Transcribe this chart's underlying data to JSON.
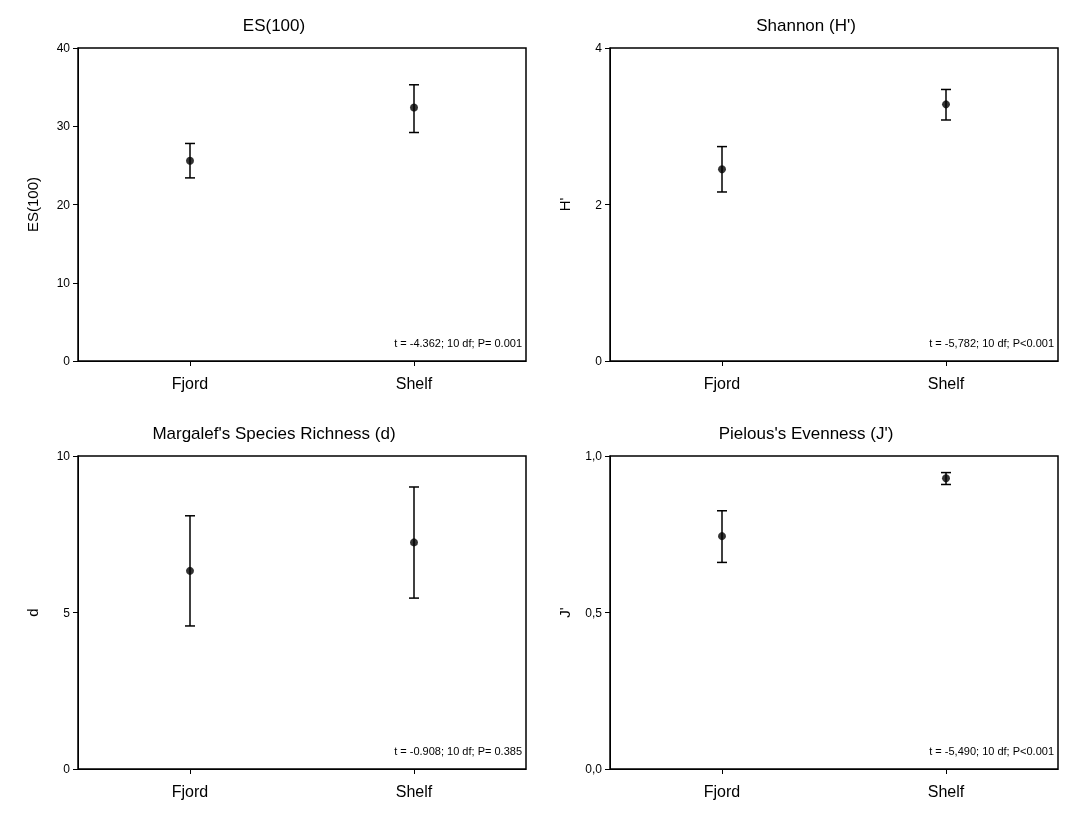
{
  "chart_data": [
    {
      "type": "scatter",
      "title": "ES(100)",
      "ylabel": "ES(100)",
      "categories": [
        "Fjord",
        "Shelf"
      ],
      "values": [
        25.6,
        32.4
      ],
      "errors": [
        [
          23.4,
          27.8
        ],
        [
          29.2,
          35.3
        ]
      ],
      "color": "#000000",
      "marker": "circle",
      "ylim": [
        0,
        40
      ],
      "yticks": [
        0,
        10,
        20,
        30,
        40
      ],
      "annotations": [
        "t = -4.362; 10 df; P= 0.001"
      ]
    },
    {
      "type": "scatter",
      "title": "Shannon (H')",
      "ylabel": "H'",
      "categories": [
        "Fjord",
        "Shelf"
      ],
      "values": [
        2.45,
        3.28
      ],
      "errors": [
        [
          2.16,
          2.74
        ],
        [
          3.08,
          3.47
        ]
      ],
      "color": "#000000",
      "marker": "circle",
      "ylim": [
        0,
        4
      ],
      "yticks": [
        0,
        2,
        4
      ],
      "annotations": [
        "t = -5,782; 10 df; P<0.001"
      ]
    },
    {
      "type": "scatter",
      "title": "Margalef's Species Richness (d)",
      "ylabel": "d",
      "categories": [
        "Fjord",
        "Shelf"
      ],
      "values": [
        6.33,
        7.24
      ],
      "errors": [
        [
          4.57,
          8.09
        ],
        [
          5.46,
          9.01
        ]
      ],
      "color": "#000000",
      "marker": "circle",
      "ylim": [
        0,
        10
      ],
      "yticks": [
        0,
        5,
        10
      ],
      "annotations": [
        "t = -0.908; 10 df; P= 0.385"
      ]
    },
    {
      "type": "scatter",
      "title": "Pielous's Evenness (J')",
      "ylabel": "J'",
      "categories": [
        "Fjord",
        "Shelf"
      ],
      "values": [
        0.744,
        0.929
      ],
      "errors": [
        [
          0.66,
          0.825
        ],
        [
          0.909,
          0.947
        ]
      ],
      "color": "#000000",
      "marker": "circle",
      "ylim": [
        0,
        1
      ],
      "yticks": [
        {
          "value": 0,
          "label": "0,0"
        },
        {
          "value": 0.5,
          "label": "0,5"
        },
        {
          "value": 1,
          "label": "1,0"
        }
      ],
      "annotations": [
        "t = -5,490; 10 df; P<0.001"
      ]
    }
  ]
}
